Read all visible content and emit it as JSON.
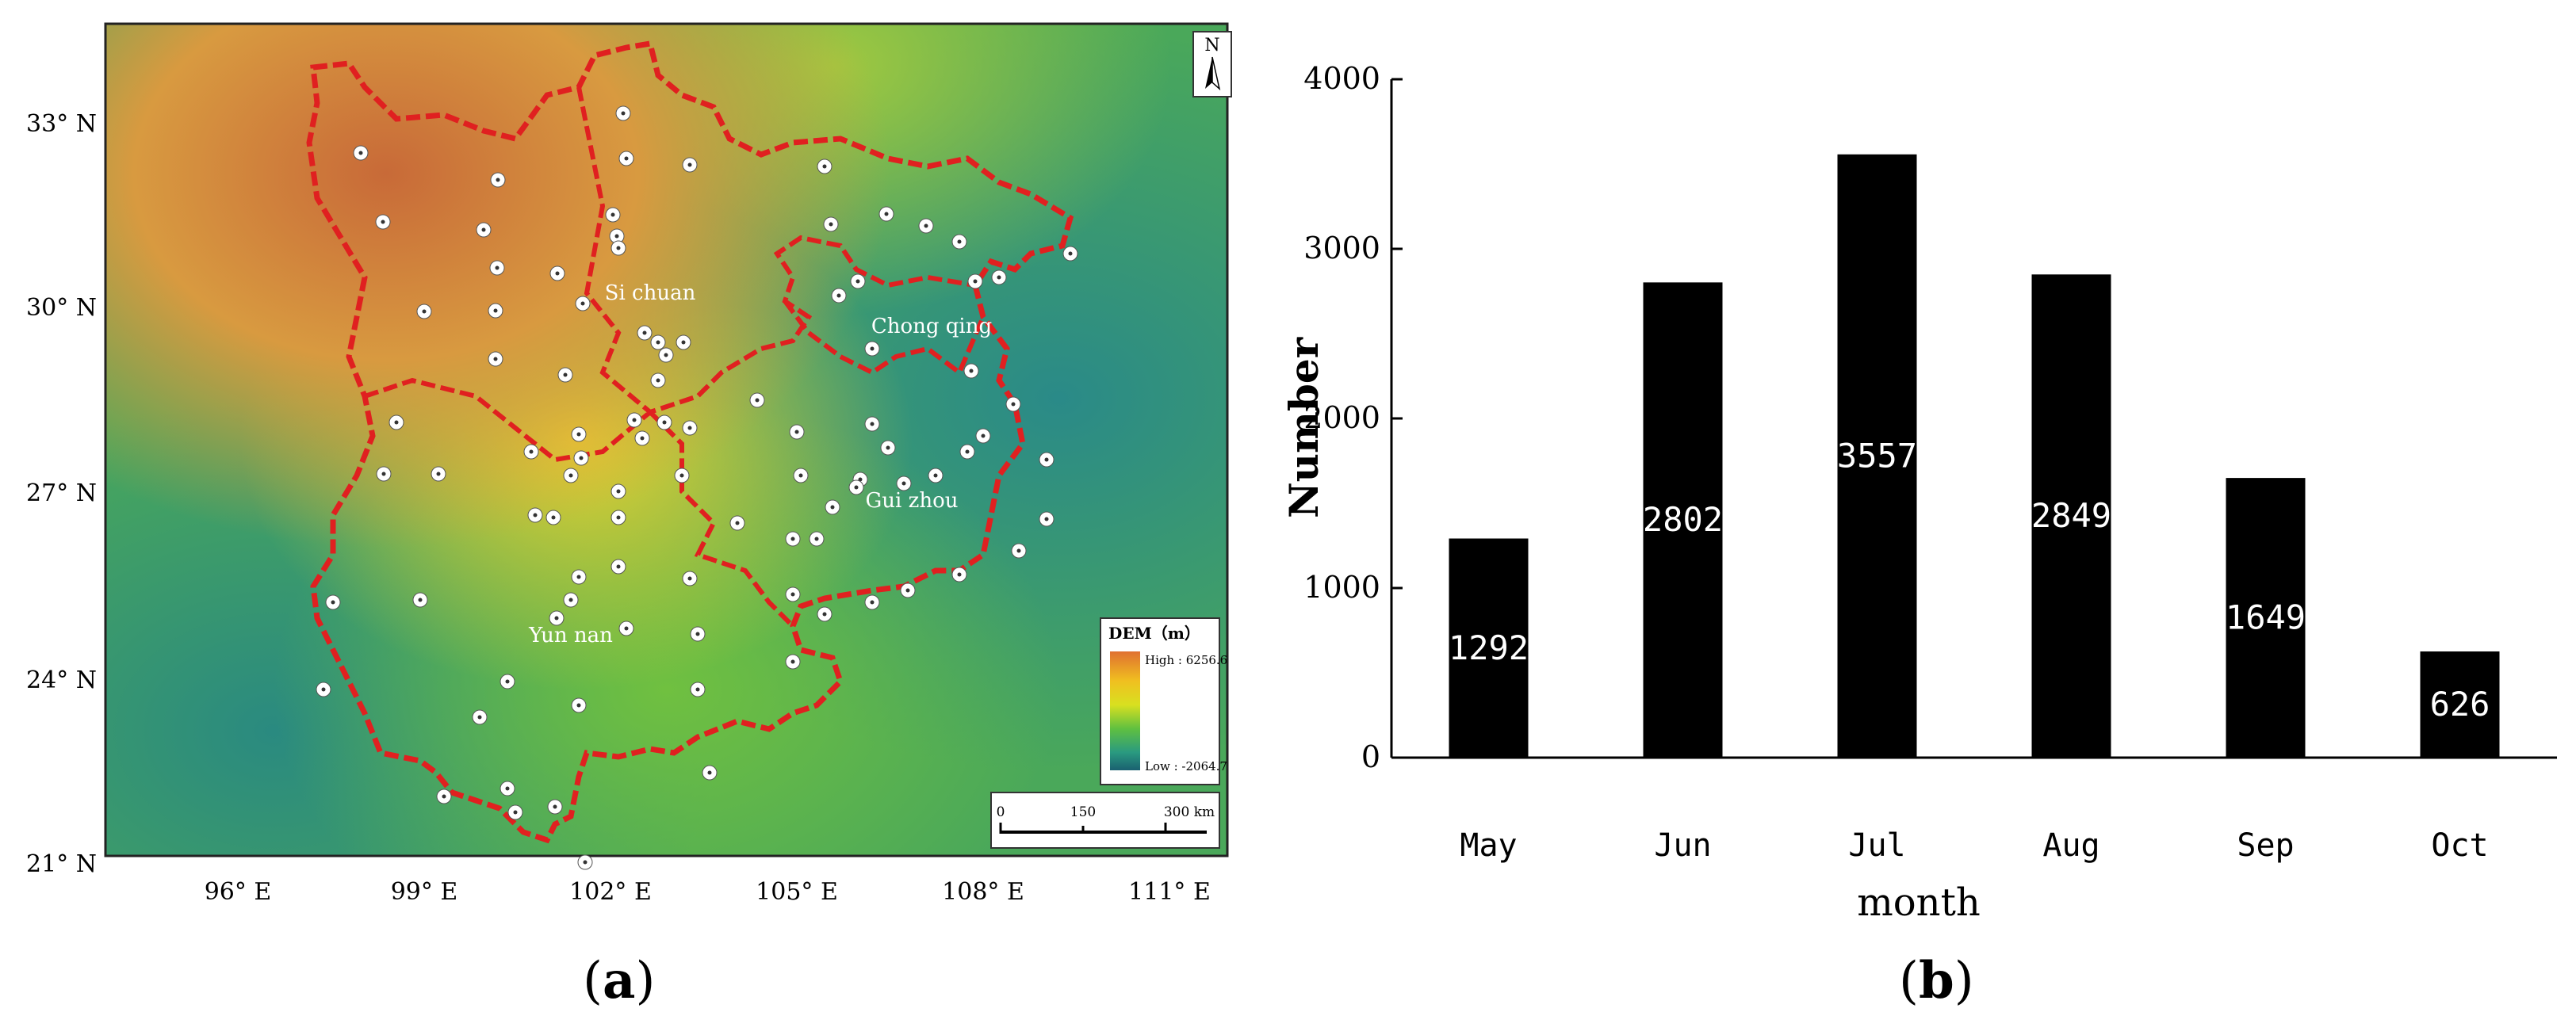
{
  "panel_a": {
    "caption_letter": "a",
    "north_label": "N",
    "lat_labels": [
      "33° N",
      "30° N",
      "27° N",
      "24° N",
      "21° N"
    ],
    "lon_labels": [
      "96° E",
      "99° E",
      "102° E",
      "105° E",
      "108° E",
      "111° E"
    ],
    "regions": [
      "Si chuan",
      "Chong qing",
      "Gui zhou",
      "Yun nan"
    ],
    "legend": {
      "title": "DEM（m）",
      "high": "High : 6256.6",
      "low": "Low : -2064.7",
      "colors": [
        "#e07030",
        "#f0c020",
        "#d8e020",
        "#60c040",
        "#2a9a80",
        "#1a6070"
      ]
    },
    "scale_bar": {
      "labels": [
        "0",
        "150",
        "300 km"
      ]
    },
    "boundary_color": "#e02020",
    "station_color": "#ffffff"
  },
  "panel_b": {
    "caption_letter": "b"
  },
  "chart_data": {
    "type": "bar",
    "categories": [
      "May",
      "Jun",
      "Jul",
      "Aug",
      "Sep",
      "Oct"
    ],
    "values": [
      1292,
      2802,
      3557,
      2849,
      1649,
      626
    ],
    "title": "",
    "xlabel": "month",
    "ylabel": "Number",
    "ylim": [
      0,
      4000
    ],
    "yticks": [
      "0",
      "1000",
      "2000",
      "3000",
      "4000"
    ],
    "bar_color": "#000000",
    "label_color": "#ffffff",
    "grid": false
  }
}
